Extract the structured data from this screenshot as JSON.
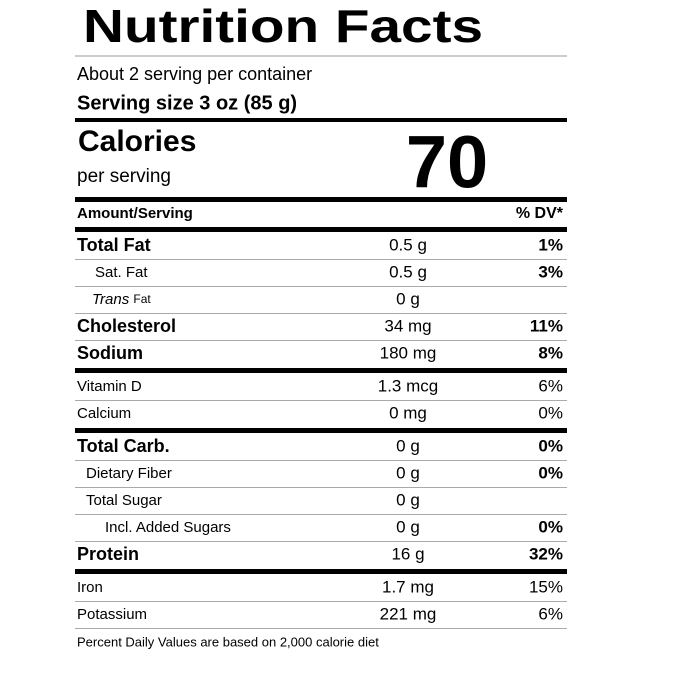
{
  "header": {
    "title": "Nutrition Facts",
    "servings": "About 2 serving per container",
    "serving_size": "Serving size 3 oz (85 g)"
  },
  "calories": {
    "label": "Calories",
    "sublabel": "per serving",
    "value": "70"
  },
  "table": {
    "amount_header": "Amount/Serving",
    "dv_header": "% DV*",
    "rows": [
      {
        "name": "Total Fat",
        "amount": "0.5 g",
        "dv": "1%"
      },
      {
        "name": "Sat. Fat",
        "amount": "0.5 g",
        "dv": "3%"
      },
      {
        "name_italic": "Trans",
        "name": "Fat",
        "amount": "0 g"
      },
      {
        "name": "Cholesterol",
        "amount": "34 mg",
        "dv": "11%"
      },
      {
        "name": "Sodium",
        "amount": "180 mg",
        "dv": "8%"
      },
      {
        "name": "Vitamin D",
        "amount": "1.3 mcg",
        "dv": "6%"
      },
      {
        "name": "Calcium",
        "amount": "0 mg",
        "dv": "0%"
      },
      {
        "name": "Total Carb.",
        "amount": "0 g",
        "dv": "0%"
      },
      {
        "name": "Dietary Fiber",
        "amount": "0 g",
        "dv": "0%"
      },
      {
        "name": "Total Sugar",
        "amount": "0 g"
      },
      {
        "name": "Incl. Added Sugars",
        "amount": "0 g",
        "dv": "0%"
      },
      {
        "name": "Protein",
        "amount": "16 g",
        "dv": "32%"
      },
      {
        "name": "Iron",
        "amount": "1.7 mg",
        "dv": "15%"
      },
      {
        "name": "Potassium",
        "amount": "221 mg",
        "dv": "6%"
      }
    ]
  },
  "footnote": "Percent Daily Values are based on 2,000 calorie diet"
}
